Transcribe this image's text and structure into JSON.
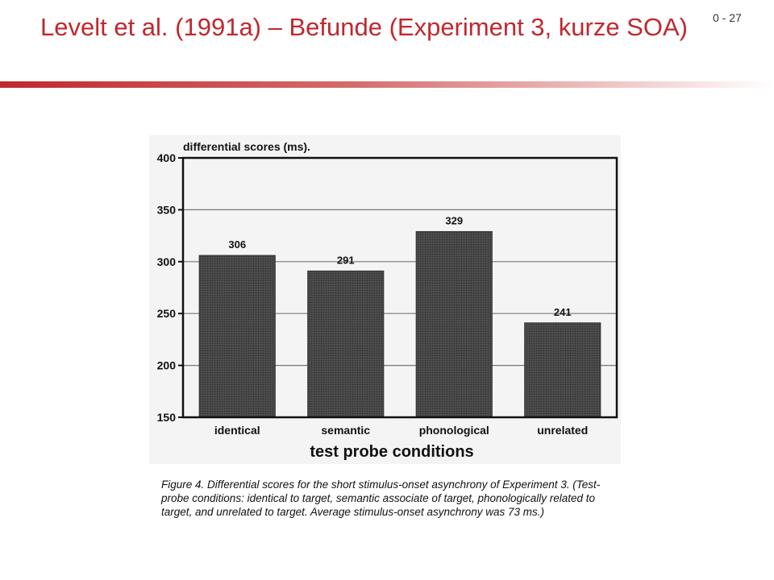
{
  "slide": {
    "title": "Levelt et al. (1991a) – Befunde (Experiment 3, kurze SOA)",
    "number": "0 - 27"
  },
  "colors": {
    "title": "#c0282d",
    "bar_fill": "#4a4a4a",
    "axis": "#111111"
  },
  "chart_data": {
    "type": "bar",
    "title": "differential scores (ms).",
    "xlabel": "test probe conditions",
    "ylabel": "",
    "categories": [
      "identical",
      "semantic",
      "phonological",
      "unrelated"
    ],
    "values": [
      306,
      291,
      329,
      241
    ],
    "data_labels": [
      "306",
      "291",
      "329",
      "241"
    ],
    "ylim": [
      150,
      400
    ],
    "yticks": [
      150,
      200,
      250,
      300,
      350,
      400
    ],
    "grid": true,
    "legend": "none"
  },
  "caption": "Figure 4. Differential scores for the short stimulus-onset asynchrony of Experiment 3. (Test-probe conditions: identical to target, semantic associate of target, phonologically related to target, and unrelated to target. Average stimulus-onset asynchrony was 73 ms.)"
}
